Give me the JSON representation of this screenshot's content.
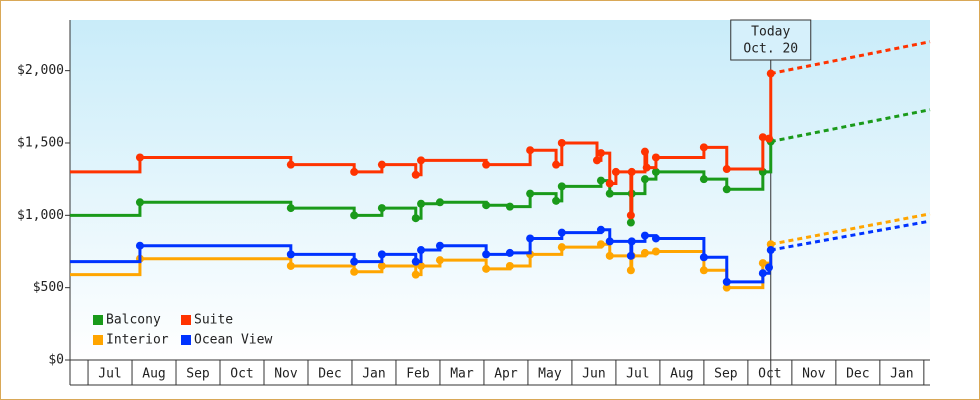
{
  "chart_data": {
    "type": "step-line",
    "xlim": [
      -0.41,
      19.14
    ],
    "xticks": [
      {
        "value": 0.5,
        "label": "Jul"
      },
      {
        "value": 1.5,
        "label": "Aug"
      },
      {
        "value": 2.5,
        "label": "Sep"
      },
      {
        "value": 3.5,
        "label": "Oct"
      },
      {
        "value": 4.5,
        "label": "Nov"
      },
      {
        "value": 5.5,
        "label": "Dec"
      },
      {
        "value": 6.5,
        "label": "Jan"
      },
      {
        "value": 7.5,
        "label": "Feb"
      },
      {
        "value": 8.5,
        "label": "Mar"
      },
      {
        "value": 9.5,
        "label": "Apr"
      },
      {
        "value": 10.5,
        "label": "May"
      },
      {
        "value": 11.5,
        "label": "Jun"
      },
      {
        "value": 12.5,
        "label": "Jul"
      },
      {
        "value": 13.5,
        "label": "Aug"
      },
      {
        "value": 14.5,
        "label": "Sep"
      },
      {
        "value": 15.5,
        "label": "Oct"
      },
      {
        "value": 16.5,
        "label": "Nov"
      },
      {
        "value": 17.5,
        "label": "Dec"
      },
      {
        "value": 18.5,
        "label": "Jan"
      }
    ],
    "ylim": [
      0,
      2350
    ],
    "yticks": [
      {
        "value": 0,
        "label": "$0"
      },
      {
        "value": 500,
        "label": "$500"
      },
      {
        "value": 1000,
        "label": "$1,000"
      },
      {
        "value": 1500,
        "label": "$1,500"
      },
      {
        "value": 2000,
        "label": "$2,000"
      }
    ],
    "legend": "lower left",
    "annotation": {
      "lines": [
        "Today",
        "Oct. 20"
      ],
      "x": 15.52
    },
    "series": [
      {
        "name": "Balcony",
        "color": "#1a9a1a",
        "x": [
          -0.41,
          1.18,
          4.61,
          6.05,
          6.68,
          7.45,
          7.57,
          8.0,
          9.05,
          9.59,
          10.05,
          10.64,
          10.77,
          11.66,
          11.86,
          12.34,
          12.36,
          12.66,
          12.91,
          14.0,
          14.52,
          15.34,
          15.52
        ],
        "values": [
          1000,
          1090,
          1050,
          1000,
          1050,
          980,
          1080,
          1090,
          1070,
          1060,
          1150,
          1100,
          1200,
          1240,
          1150,
          950,
          1150,
          1250,
          1300,
          1250,
          1180,
          1300,
          1510
        ],
        "forecast": {
          "x": [
            15.52,
            19.14
          ],
          "values": [
            1510,
            1730
          ]
        }
      },
      {
        "name": "Suite",
        "color": "#ff3300",
        "x": [
          -0.41,
          1.18,
          4.61,
          6.05,
          6.68,
          7.45,
          7.57,
          9.05,
          10.05,
          10.64,
          10.77,
          11.57,
          11.66,
          11.86,
          12.0,
          12.34,
          12.36,
          12.66,
          12.7,
          12.91,
          14.0,
          14.52,
          15.34,
          15.48,
          15.52
        ],
        "values": [
          1300,
          1400,
          1350,
          1300,
          1350,
          1280,
          1380,
          1350,
          1450,
          1350,
          1500,
          1380,
          1430,
          1220,
          1300,
          1000,
          1300,
          1440,
          1330,
          1400,
          1470,
          1320,
          1540,
          1530,
          1980
        ],
        "forecast": {
          "x": [
            15.52,
            19.14
          ],
          "values": [
            1980,
            2200
          ]
        }
      },
      {
        "name": "Interior",
        "color": "#ffa500",
        "x": [
          -0.41,
          1.18,
          4.61,
          6.05,
          6.68,
          7.45,
          7.57,
          8.0,
          9.05,
          9.59,
          10.05,
          10.77,
          11.66,
          11.86,
          12.34,
          12.36,
          12.66,
          12.91,
          14.0,
          14.52,
          15.34,
          15.52
        ],
        "values": [
          590,
          700,
          650,
          610,
          650,
          590,
          650,
          690,
          630,
          650,
          730,
          780,
          800,
          720,
          620,
          720,
          740,
          750,
          620,
          500,
          670,
          800
        ],
        "forecast": {
          "x": [
            15.52,
            19.14
          ],
          "values": [
            800,
            1010
          ]
        }
      },
      {
        "name": "Ocean View",
        "color": "#0033ff",
        "x": [
          -0.41,
          1.18,
          4.61,
          6.05,
          6.68,
          7.45,
          7.57,
          8.0,
          9.05,
          9.59,
          10.05,
          10.77,
          11.66,
          11.86,
          12.34,
          12.36,
          12.66,
          12.91,
          14.0,
          14.52,
          15.34,
          15.48,
          15.52
        ],
        "values": [
          680,
          790,
          730,
          680,
          730,
          680,
          760,
          790,
          730,
          740,
          840,
          880,
          900,
          820,
          720,
          820,
          860,
          840,
          710,
          540,
          600,
          640,
          760
        ],
        "forecast": {
          "x": [
            15.52,
            19.14
          ],
          "values": [
            760,
            960
          ]
        }
      }
    ]
  }
}
